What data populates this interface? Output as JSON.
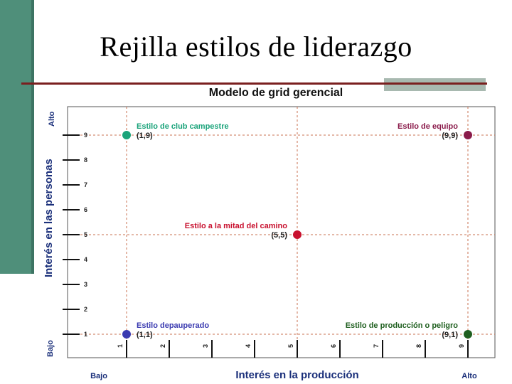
{
  "slide": {
    "title": "Rejilla estilos de liderazgo"
  },
  "chart_data": {
    "type": "scatter",
    "title": "Modelo de grid gerencial",
    "xlabel": "Interés en la producción",
    "ylabel": "Interés en las personas",
    "x_low_label": "Bajo",
    "x_high_label": "Alto",
    "y_low_label": "Bajo",
    "y_high_label": "Alto",
    "x_ticks": [
      "1",
      "2",
      "3",
      "4",
      "5",
      "6",
      "7",
      "8",
      "9"
    ],
    "y_ticks": [
      "1",
      "2",
      "3",
      "4",
      "5",
      "6",
      "7",
      "8",
      "9"
    ],
    "xlim": [
      1,
      9
    ],
    "ylim": [
      1,
      9
    ],
    "points": [
      {
        "name": "Estilo de club campestre",
        "coord": "(1,9)",
        "x": 1,
        "y": 9,
        "color": "#1aa37a",
        "anchor": "right"
      },
      {
        "name": "Estilo de equipo",
        "coord": "(9,9)",
        "x": 9,
        "y": 9,
        "color": "#8a1a4a",
        "anchor": "left"
      },
      {
        "name": "Estilo a la mitad del camino",
        "coord": "(5,5)",
        "x": 5,
        "y": 5,
        "color": "#c8102e",
        "anchor": "left"
      },
      {
        "name": "Estilo depauperado",
        "coord": "(1,1)",
        "x": 1,
        "y": 1,
        "color": "#3a3ab0",
        "anchor": "right"
      },
      {
        "name": "Estilo de producción o peligro",
        "coord": "(9,1)",
        "x": 9,
        "y": 1,
        "color": "#1f5f1f",
        "anchor": "left"
      }
    ]
  }
}
